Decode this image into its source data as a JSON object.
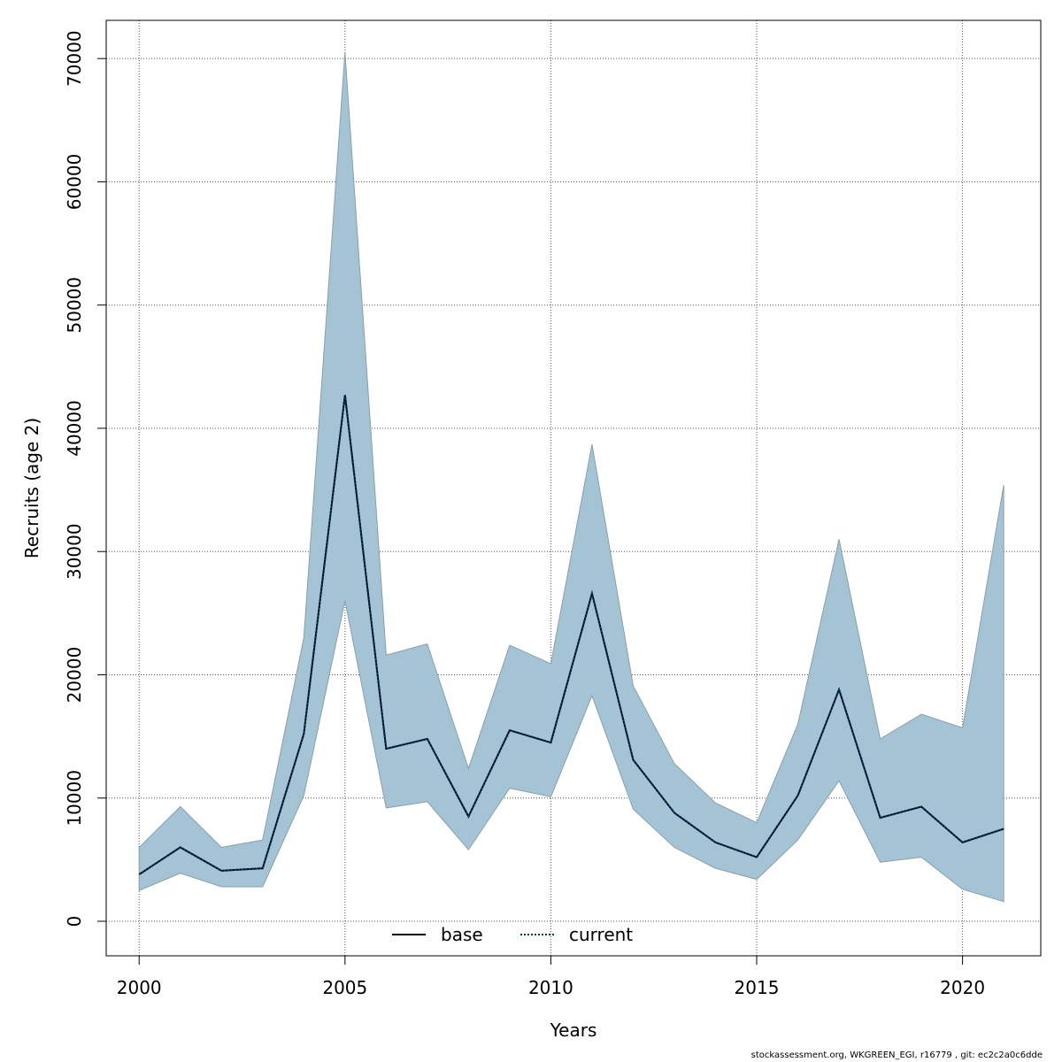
{
  "chart_data": {
    "type": "line",
    "xlabel": "Years",
    "ylabel": "Recruits (age 2)",
    "xlim": [
      1999.2,
      2021.9
    ],
    "ylim": [
      -2800,
      73100
    ],
    "x_ticks": [
      2000,
      2005,
      2010,
      2015,
      2020
    ],
    "y_ticks": [
      0,
      10000,
      20000,
      30000,
      40000,
      50000,
      60000,
      70000
    ],
    "grid": true,
    "legend_position": "bottom",
    "colors": {
      "band": "#a4c4d6",
      "band_edge": "#8a9eab",
      "base": "#000000",
      "current": "#003b6f"
    },
    "x": [
      2000,
      2001,
      2002,
      2003,
      2004,
      2005,
      2006,
      2007,
      2008,
      2009,
      2010,
      2011,
      2012,
      2013,
      2014,
      2015,
      2016,
      2017,
      2018,
      2019,
      2020,
      2021
    ],
    "band_upper": [
      6000,
      9300,
      6000,
      6600,
      23000,
      70500,
      21600,
      22500,
      12400,
      22400,
      20900,
      38700,
      19100,
      12800,
      9600,
      8000,
      16000,
      31000,
      14800,
      16800,
      15700,
      35400
    ],
    "band_lower": [
      2500,
      3900,
      2800,
      2800,
      10200,
      26000,
      9200,
      9700,
      5800,
      10800,
      10100,
      18300,
      9100,
      6000,
      4300,
      3400,
      6600,
      11400,
      4800,
      5200,
      2600,
      1600
    ],
    "series": [
      {
        "name": "base",
        "style": "solid",
        "values": [
          3800,
          6000,
          4100,
          4300,
          15200,
          42700,
          14000,
          14800,
          8500,
          15500,
          14500,
          26600,
          13100,
          8800,
          6400,
          5200,
          10200,
          18800,
          8400,
          9300,
          6400,
          7500
        ]
      },
      {
        "name": "current",
        "style": "dotted",
        "values": [
          3800,
          6000,
          4100,
          4300,
          15200,
          42700,
          14000,
          14800,
          8500,
          15500,
          14500,
          26600,
          13100,
          8800,
          6400,
          5200,
          10200,
          18800,
          8400,
          9300,
          6400,
          7500
        ]
      }
    ]
  },
  "footer_text": "stockassessment.org, WKGREEN_EGI, r16779 , git: ec2c2a0c6dde"
}
